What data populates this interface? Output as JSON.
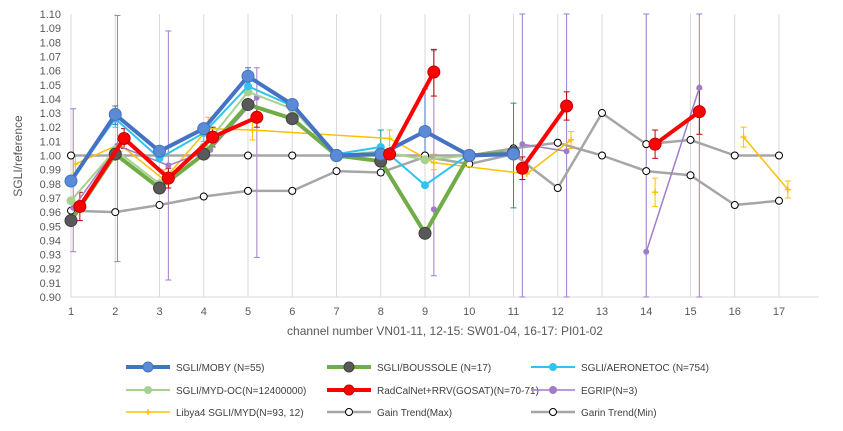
{
  "chart_data": {
    "type": "line",
    "xlabel": "channel number  VN01-11, 12-15: SW01-04, 16-17: PI01-02",
    "ylabel": "SGLI/reference",
    "xlim": [
      1,
      17
    ],
    "ylim": [
      0.9,
      1.1
    ],
    "x_ticks": [
      "1",
      "2",
      "3",
      "4",
      "5",
      "6",
      "7",
      "8",
      "9",
      "10",
      "11",
      "12",
      "13",
      "14",
      "15",
      "16",
      "17"
    ],
    "y_ticks": [
      "0.90",
      "0.91",
      "0.92",
      "0.93",
      "0.94",
      "0.95",
      "0.96",
      "0.97",
      "0.98",
      "0.99",
      "1.00",
      "1.01",
      "1.02",
      "1.03",
      "1.04",
      "1.05",
      "1.06",
      "1.07",
      "1.08",
      "1.09",
      "1.10"
    ],
    "grid": "vertical",
    "legend_position": "bottom",
    "series": [
      {
        "name": "Gain Trend(Max)",
        "color": "#a6a6a6",
        "width": 2.5,
        "marker": "open",
        "marker_size": 3.5,
        "points": [
          [
            1,
            0.961
          ],
          [
            2,
            0.96
          ],
          [
            3,
            0.965
          ],
          [
            4,
            0.971
          ],
          [
            5,
            0.975
          ],
          [
            6,
            0.975
          ],
          [
            7,
            0.989
          ],
          [
            8,
            0.988
          ],
          [
            9,
            0.999
          ],
          [
            10,
            0.994
          ],
          [
            11,
            1.001
          ],
          [
            12,
            0.977
          ],
          [
            13,
            1.03
          ],
          [
            14,
            1.008
          ],
          [
            15,
            1.011
          ],
          [
            16,
            1.0
          ],
          [
            17,
            1.0
          ]
        ]
      },
      {
        "name": "Garin Trend(Min)",
        "color": "#a6a6a6",
        "width": 2.5,
        "marker": "open",
        "marker_size": 3.5,
        "points": [
          [
            1,
            1.0
          ],
          [
            2,
            1.0
          ],
          [
            3,
            1.0
          ],
          [
            4,
            1.0
          ],
          [
            5,
            1.0
          ],
          [
            6,
            1.0
          ],
          [
            7,
            1.0
          ],
          [
            8,
            1.0
          ],
          [
            9,
            1.0
          ],
          [
            10,
            1.0
          ],
          [
            11,
            1.005
          ],
          [
            12,
            1.009
          ],
          [
            13,
            1.0
          ],
          [
            14,
            0.989
          ],
          [
            15,
            0.986
          ],
          [
            16,
            0.965
          ],
          [
            17,
            0.968
          ]
        ]
      },
      {
        "name": "Libya4 SGLI/MYD(N=93, 12)",
        "color": "#ffc000",
        "width": 1.5,
        "marker": "plus",
        "marker_size": 3,
        "points": [
          [
            1.1,
            0.994
          ],
          [
            2.1,
            1.008
          ],
          [
            3.1,
            0.983
          ],
          [
            4.1,
            1.019
          ],
          [
            5.1,
            1.018
          ],
          [
            8.2,
            1.012
          ],
          [
            9.2,
            0.995
          ],
          [
            11.3,
            0.987
          ],
          [
            12.3,
            1.011
          ],
          null,
          [
            14.2,
            0.974
          ],
          null,
          [
            16.2,
            1.013
          ],
          [
            17.2,
            0.976
          ]
        ]
      },
      {
        "name": "EGRIP(N=3)",
        "color": "#a17cc8",
        "width": 1.5,
        "marker": "dot",
        "marker_size": 2.5,
        "points": [
          [
            1.05,
            0.963
          ],
          [
            2.05,
            1.007
          ],
          [
            3.2,
            0.993
          ],
          [
            4.15,
            1.004
          ],
          [
            5.2,
            1.041
          ],
          null,
          [
            9.2,
            0.962
          ],
          null,
          [
            11.2,
            1.008
          ],
          [
            12.2,
            1.003
          ],
          null,
          [
            14.0,
            0.932
          ],
          [
            15.2,
            1.048
          ]
        ]
      },
      {
        "name": "SGLI/MYD-OC(N=12400000)",
        "color": "#a9d18e",
        "width": 2,
        "marker": "dot",
        "marker_size": 4,
        "points": [
          [
            1,
            0.968
          ],
          [
            2,
            1.004
          ],
          [
            3,
            0.98
          ],
          [
            4,
            1.006
          ],
          [
            5,
            1.045
          ],
          [
            6,
            1.033
          ],
          [
            7,
            1.0
          ],
          [
            8,
            1.003
          ],
          [
            9,
            0.997
          ],
          [
            10,
            1.0
          ],
          [
            11,
            1.0
          ]
        ]
      },
      {
        "name": "SGLI/AERONETOC (N=754)",
        "color": "#2ec4ee",
        "width": 2,
        "marker": "dot",
        "marker_size": 3.5,
        "points": [
          [
            1,
            0.983
          ],
          [
            2,
            1.026
          ],
          [
            3,
            0.998
          ],
          [
            4,
            1.016
          ],
          [
            5,
            1.049
          ],
          [
            6,
            1.035
          ],
          [
            7,
            1.001
          ],
          [
            8,
            1.006
          ],
          [
            9,
            0.979
          ],
          [
            10,
            1.001
          ],
          [
            11,
            1.0
          ]
        ]
      },
      {
        "name": "SGLI/BOUSSOLE (N=17)",
        "color": "#70ad47",
        "width": 4,
        "marker": "dark",
        "marker_size": 6,
        "points": [
          [
            1,
            0.954
          ],
          [
            2,
            1.001
          ],
          [
            3,
            0.977
          ],
          [
            4,
            1.001
          ],
          [
            5,
            1.036
          ],
          [
            6,
            1.026
          ],
          [
            7,
            1.0
          ],
          [
            8,
            0.996
          ],
          [
            9,
            0.945
          ],
          [
            10,
            1.0
          ],
          [
            11,
            1.002
          ]
        ]
      },
      {
        "name": "SGLI/MOBY (N=55)",
        "color": "#4472c4",
        "width": 4,
        "marker": "blue",
        "marker_size": 6,
        "points": [
          [
            1,
            0.982
          ],
          [
            2,
            1.029
          ],
          [
            3,
            1.003
          ],
          [
            4,
            1.019
          ],
          [
            5,
            1.056
          ],
          [
            6,
            1.036
          ],
          [
            7,
            1.0
          ],
          [
            8,
            1.001
          ],
          [
            9,
            1.017
          ],
          [
            10,
            1.0
          ],
          [
            11,
            1.001
          ]
        ]
      },
      {
        "name": "RadCalNet+RRV(GOSAT)(N=70-71)",
        "color": "#ff0000",
        "width": 4,
        "marker": "red",
        "marker_size": 6,
        "points": [
          [
            1.2,
            0.964
          ],
          [
            2.2,
            1.012
          ],
          [
            3.2,
            0.984
          ],
          [
            4.2,
            1.013
          ],
          [
            5.2,
            1.027
          ],
          null,
          [
            8.2,
            1.001
          ],
          [
            9.2,
            1.059
          ],
          null,
          [
            11.2,
            0.991
          ],
          [
            12.2,
            1.035
          ],
          null,
          [
            14.2,
            1.008
          ],
          [
            15.2,
            1.031
          ]
        ]
      }
    ],
    "error_bars": [
      {
        "color": "#a17cc8",
        "items": [
          [
            1.05,
            0.932,
            1.033
          ],
          [
            2.05,
            0.925,
            1.099
          ],
          [
            3.2,
            0.912,
            1.088
          ],
          [
            5.2,
            0.928,
            1.062
          ],
          [
            9.2,
            0.915,
            1.074
          ],
          [
            12.2,
            0.9,
            1.1
          ],
          [
            14.0,
            0.9,
            1.1
          ],
          [
            15.2,
            0.9,
            1.1
          ],
          [
            11.2,
            0.9,
            1.1
          ]
        ]
      },
      {
        "color": "#ffc000",
        "items": [
          [
            1.1,
            0.988,
            1.0
          ],
          [
            2.1,
            1.003,
            1.013
          ],
          [
            3.1,
            0.977,
            0.99
          ],
          [
            4.1,
            1.011,
            1.027
          ],
          [
            5.1,
            1.011,
            1.025
          ],
          [
            8.2,
            1.005,
            1.018
          ],
          [
            9.2,
            0.99,
            1.001
          ],
          [
            12.3,
            1.005,
            1.017
          ],
          [
            14.2,
            0.964,
            0.984
          ],
          [
            16.2,
            1.006,
            1.02
          ],
          [
            17.2,
            0.97,
            0.982
          ]
        ]
      },
      {
        "color": "#2ec4ee",
        "items": [
          [
            2,
            1.02,
            1.033
          ],
          [
            4,
            1.01,
            1.022
          ],
          [
            5,
            1.043,
            1.057
          ]
        ]
      },
      {
        "color": "#1f8fa8",
        "items": [
          [
            8,
            0.986,
            1.018
          ],
          [
            11,
            0.963,
            1.037
          ]
        ]
      },
      {
        "color": "#4472c4",
        "items": [
          [
            2,
            1.022,
            1.035
          ],
          [
            5,
            1.05,
            1.062
          ],
          [
            9,
            0.995,
            1.047
          ]
        ]
      },
      {
        "color": "#c00000",
        "items": [
          [
            1.2,
            0.954,
            0.974
          ],
          [
            2.2,
            1.005,
            1.019
          ],
          [
            3.2,
            0.977,
            0.991
          ],
          [
            4.2,
            1.006,
            1.02
          ],
          [
            5.2,
            1.02,
            1.034
          ],
          [
            9.2,
            1.042,
            1.075
          ],
          [
            11.2,
            0.983,
            0.999
          ],
          [
            12.2,
            1.025,
            1.045
          ],
          [
            14.2,
            0.998,
            1.018
          ],
          [
            15.2,
            1.015,
            1.047
          ]
        ]
      }
    ],
    "legend": [
      {
        "label": "SGLI/MOBY (N=55)",
        "color": "#4472c4",
        "marker": "blue",
        "width": 4
      },
      {
        "label": "SGLI/BOUSSOLE (N=17)",
        "color": "#70ad47",
        "marker": "dark",
        "width": 4
      },
      {
        "label": "SGLI/AERONETOC (N=754)",
        "color": "#2ec4ee",
        "marker": "dot",
        "width": 2
      },
      {
        "label": "SGLI/MYD-OC(N=12400000)",
        "color": "#a9d18e",
        "marker": "dot",
        "width": 2
      },
      {
        "label": "RadCalNet+RRV(GOSAT)(N=70-71)",
        "color": "#ff0000",
        "marker": "red",
        "width": 4
      },
      {
        "label": "EGRIP(N=3)",
        "color": "#a17cc8",
        "marker": "dot",
        "width": 1.5
      },
      {
        "label": "Libya4 SGLI/MYD(N=93, 12)",
        "color": "#ffc000",
        "marker": "plus",
        "width": 1.5
      },
      {
        "label": "Gain Trend(Max)",
        "color": "#a6a6a6",
        "marker": "open",
        "width": 2.5
      },
      {
        "label": "Garin Trend(Min)",
        "color": "#a6a6a6",
        "marker": "open",
        "width": 2.5
      }
    ]
  }
}
